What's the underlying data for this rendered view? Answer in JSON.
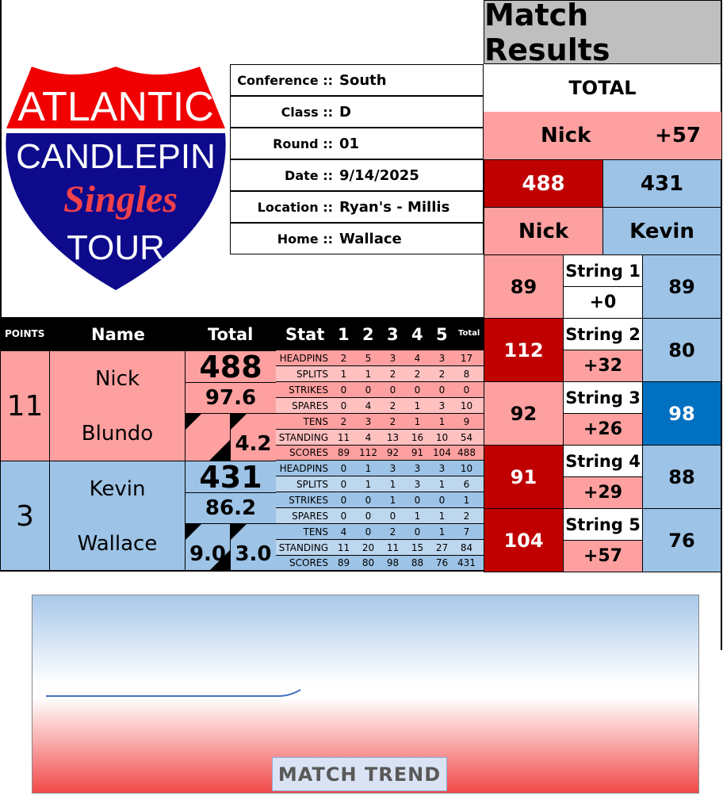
{
  "logo": {
    "line1": "ATLANTIC",
    "line2": "CANDLEPIN",
    "line3": "Singles",
    "line4": "TOUR"
  },
  "info": [
    {
      "key": "Conference ::",
      "value": "South"
    },
    {
      "key": "Class ::",
      "value": "D"
    },
    {
      "key": "Round ::",
      "value": "01"
    },
    {
      "key": "Date ::",
      "value": "9/14/2025"
    },
    {
      "key": "Location ::",
      "value": "Ryan's - Millis"
    },
    {
      "key": "Home ::",
      "value": "Wallace"
    }
  ],
  "results": {
    "title": "Match Results",
    "total_label": "TOTAL",
    "leader": "Nick",
    "margin": "+57",
    "home_total": "488",
    "away_total": "431",
    "home_name": "Nick",
    "away_name": "Kevin",
    "strings": [
      {
        "label": "String 1",
        "home": "89",
        "away": "89",
        "diff": "+0"
      },
      {
        "label": "String 2",
        "home": "112",
        "away": "80",
        "diff": "+32"
      },
      {
        "label": "String 3",
        "home": "92",
        "away": "98",
        "diff": "+26"
      },
      {
        "label": "String 4",
        "home": "91",
        "away": "88",
        "diff": "+29"
      },
      {
        "label": "String 5",
        "home": "104",
        "away": "76",
        "diff": "+57"
      }
    ]
  },
  "table": {
    "headers": {
      "points": "POINTS",
      "name": "Name",
      "total": "Total",
      "stat": "Stat",
      "cols": [
        "1",
        "2",
        "3",
        "4",
        "5"
      ],
      "total_col": "Total"
    },
    "players": [
      {
        "points": "11",
        "first": "Nick",
        "last": "Blundo",
        "total": "488",
        "avg": "97.6",
        "left_stat": "",
        "right_stat": "4.2",
        "stats": [
          [
            "HEADPINS",
            "2",
            "5",
            "3",
            "4",
            "3",
            "17"
          ],
          [
            "SPLITS",
            "1",
            "1",
            "2",
            "2",
            "2",
            "8"
          ],
          [
            "STRIKES",
            "0",
            "0",
            "0",
            "0",
            "0",
            "0"
          ],
          [
            "SPARES",
            "0",
            "4",
            "2",
            "1",
            "3",
            "10"
          ],
          [
            "TENS",
            "2",
            "3",
            "2",
            "1",
            "1",
            "9"
          ],
          [
            "STANDING",
            "11",
            "4",
            "13",
            "16",
            "10",
            "54"
          ],
          [
            "SCORES",
            "89",
            "112",
            "92",
            "91",
            "104",
            "488"
          ]
        ]
      },
      {
        "points": "3",
        "first": "Kevin",
        "last": "Wallace",
        "total": "431",
        "avg": "86.2",
        "left_stat": "9.0",
        "right_stat": "3.0",
        "stats": [
          [
            "HEADPINS",
            "0",
            "1",
            "3",
            "3",
            "3",
            "10"
          ],
          [
            "SPLITS",
            "0",
            "1",
            "1",
            "3",
            "1",
            "6"
          ],
          [
            "STRIKES",
            "0",
            "0",
            "1",
            "0",
            "0",
            "1"
          ],
          [
            "SPARES",
            "0",
            "0",
            "0",
            "1",
            "1",
            "2"
          ],
          [
            "TENS",
            "4",
            "0",
            "2",
            "0",
            "1",
            "7"
          ],
          [
            "STANDING",
            "11",
            "20",
            "11",
            "15",
            "27",
            "84"
          ],
          [
            "SCORES",
            "89",
            "80",
            "98",
            "88",
            "76",
            "431"
          ]
        ]
      }
    ]
  },
  "trend": {
    "label": "MATCH TREND"
  },
  "colors": {
    "home": "#ffa0a0",
    "away": "#9dc3e6",
    "home_win": "#c00000",
    "away_win": "#0070c0"
  }
}
